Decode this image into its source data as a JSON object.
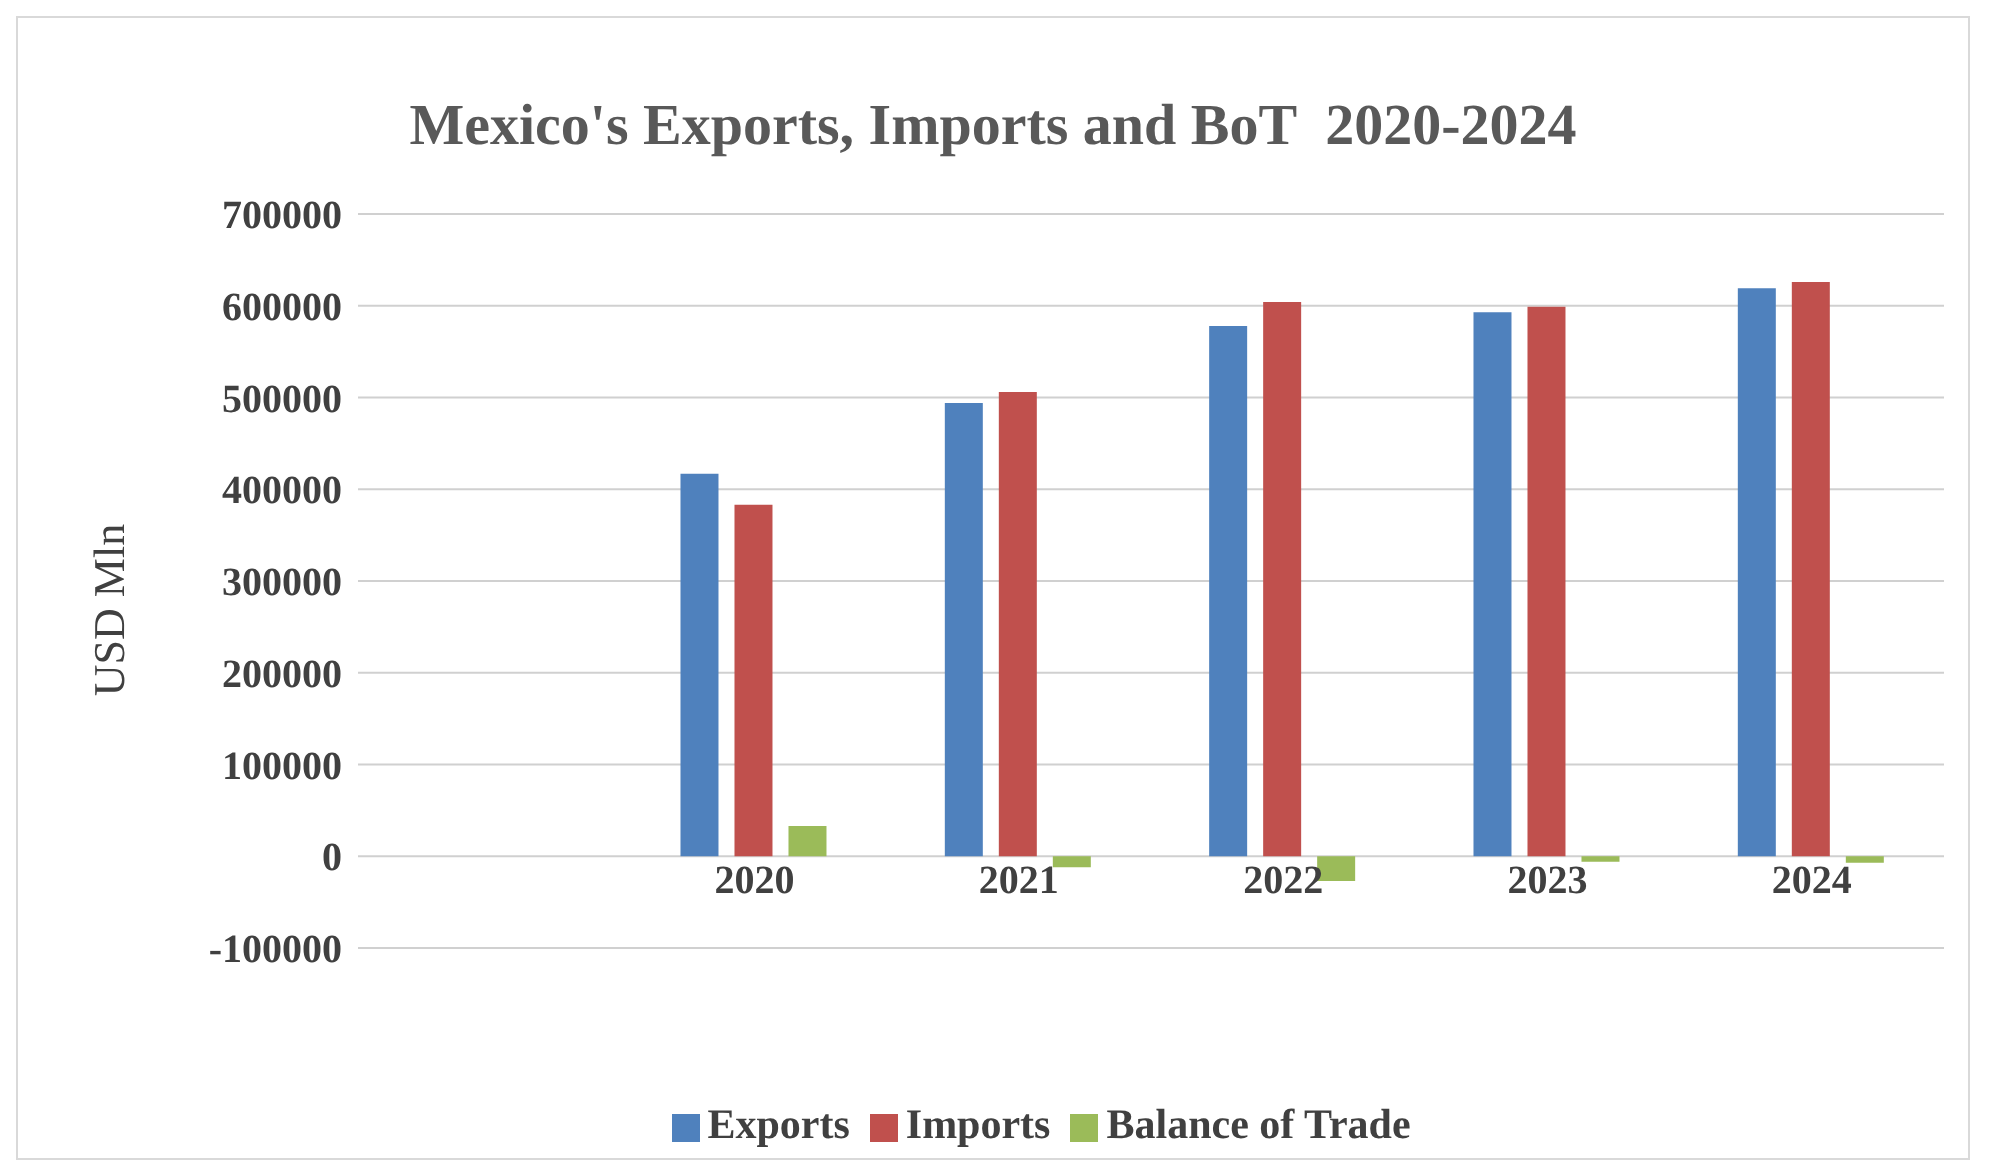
{
  "chart_data": {
    "type": "bar",
    "title": "Mexico's Exports, Imports and BoT  2020-2024",
    "ylabel": "USD Mln",
    "categories": [
      null,
      "2020",
      "2021",
      "2022",
      "2023",
      "2024"
    ],
    "series": [
      {
        "name": "Exports",
        "color": "#4f81bd",
        "values": [
          null,
          417000,
          494000,
          578000,
          593000,
          619000
        ]
      },
      {
        "name": "Imports",
        "color": "#c0504d",
        "values": [
          null,
          383000,
          506000,
          604000,
          599000,
          626000
        ]
      },
      {
        "name": "Balance of Trade",
        "color": "#9bbb59",
        "values": [
          null,
          33000,
          -12000,
          -27000,
          -6000,
          -7000
        ]
      }
    ],
    "ylim": [
      -100000,
      700000
    ],
    "yticks": [
      -100000,
      0,
      100000,
      200000,
      300000,
      400000,
      500000,
      600000,
      700000
    ],
    "grid": "y",
    "legend": "bottom"
  }
}
